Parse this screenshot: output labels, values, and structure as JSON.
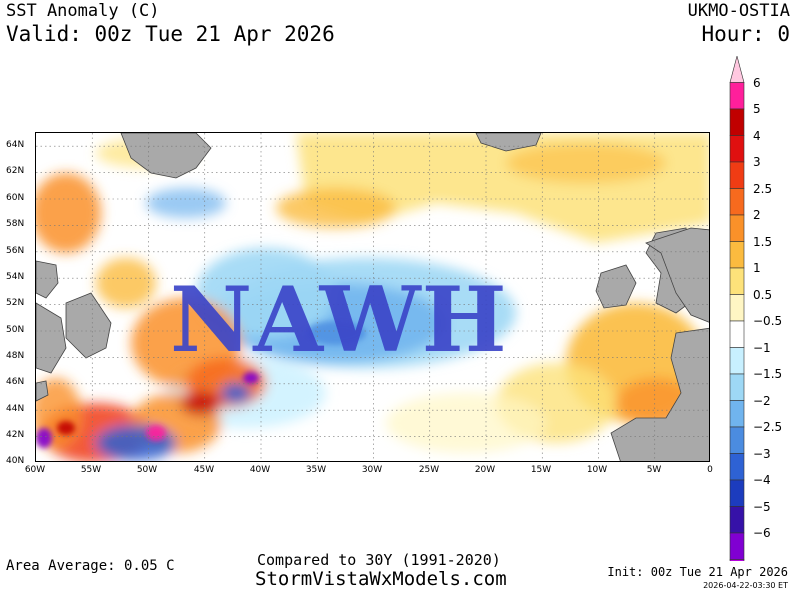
{
  "header": {
    "title": "SST Anomaly (C)",
    "valid": "Valid: 00z Tue 21 Apr 2026",
    "model": "UKMO-OSTIA",
    "hour": "Hour: 0"
  },
  "map": {
    "watermark": "NAWH",
    "lat_labels": [
      "64N",
      "62N",
      "60N",
      "58N",
      "56N",
      "54N",
      "52N",
      "50N",
      "48N",
      "46N",
      "44N",
      "42N",
      "40N"
    ],
    "lon_labels": [
      "60W",
      "55W",
      "50W",
      "45W",
      "40W",
      "35W",
      "30W",
      "25W",
      "20W",
      "15W",
      "10W",
      "5W",
      "0"
    ],
    "lat_range": [
      40,
      65
    ],
    "lon_range": [
      -60,
      0
    ],
    "land_color": "#a9a9a9",
    "grid": true
  },
  "colorbar": {
    "labels": [
      "6",
      "5",
      "4",
      "3",
      "2.5",
      "2",
      "1.5",
      "1",
      "0.5",
      "−0.5",
      "−1",
      "−1.5",
      "−2",
      "−2.5",
      "−3",
      "−4",
      "−5",
      "−6"
    ],
    "colors": [
      "#ff1f9b",
      "#c00000",
      "#e01010",
      "#f03c14",
      "#f76a1e",
      "#fa9129",
      "#fbbb3f",
      "#fde27a",
      "#fff6c4",
      "#ffffff",
      "#c8f0ff",
      "#9ed8f5",
      "#70b4ee",
      "#4b8ce0",
      "#2e62d4",
      "#1c3cbe",
      "#3612a8",
      "#8000d2",
      "#b800e0"
    ],
    "top_arrow_color": "#ffc8e0",
    "bottom_arrow_color": "#d7a0ff"
  },
  "footer": {
    "area_average": "Area Average: 0.05 C",
    "compared": "Compared to 30Y (1991-2020)",
    "website": "StormVistaWxModels.com",
    "init": "Init: 00z Tue 21 Apr 2026",
    "stamp": "2026-04-22-03:30 ET"
  }
}
